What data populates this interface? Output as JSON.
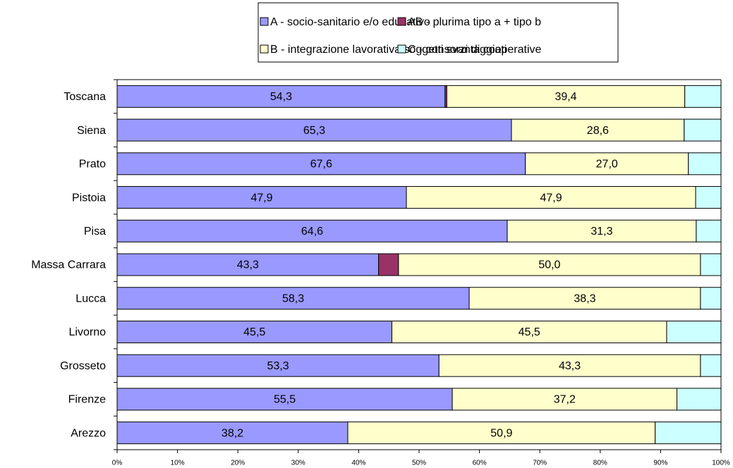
{
  "chart_data": {
    "type": "stacked_bar_horizontal",
    "categories": [
      "Toscana",
      "Siena",
      "Prato",
      "Pistoia",
      "Pisa",
      "Massa Carrara",
      "Lucca",
      "Livorno",
      "Grosseto",
      "Firenze",
      "Arezzo"
    ],
    "series": [
      {
        "name": "A - socio-sanitario e/o educativo",
        "color": "#9999ff",
        "values": [
          54.3,
          65.3,
          67.6,
          47.9,
          64.6,
          43.3,
          58.3,
          45.5,
          53.3,
          55.5,
          38.2
        ],
        "value_labels": [
          "54,3",
          "65,3",
          "67,6",
          "47,9",
          "64,6",
          "43,3",
          "58,3",
          "45,5",
          "53,3",
          "55,5",
          "38,2"
        ]
      },
      {
        "name": "AB - plurima tipo a + tipo b",
        "color": "#993366",
        "values": [
          0.3,
          0,
          0,
          0,
          0,
          3.3,
          0,
          0,
          0,
          0,
          0
        ]
      },
      {
        "name": "B - integrazione lavorativa soggetti svantaggiati",
        "color": "#ffffcc",
        "values": [
          39.4,
          28.6,
          27.0,
          47.9,
          31.3,
          50.0,
          38.3,
          45.5,
          43.3,
          37.2,
          50.9
        ],
        "value_labels": [
          "39,4",
          "28,6",
          "27,0",
          "47,9",
          "31,3",
          "50,0",
          "38,3",
          "45,5",
          "43,3",
          "37,2",
          "50,9"
        ]
      },
      {
        "name": "C - consorzi di cooperative",
        "color": "#ccffff",
        "values": [
          6.0,
          6.1,
          5.4,
          4.2,
          4.1,
          3.4,
          3.4,
          9.0,
          3.4,
          7.3,
          10.9
        ]
      }
    ],
    "xlim": [
      0,
      100
    ],
    "xticks": [
      {
        "value": 0,
        "label": "0%"
      },
      {
        "value": 10,
        "label": "10%"
      },
      {
        "value": 20,
        "label": "20%"
      },
      {
        "value": 30,
        "label": "30%"
      },
      {
        "value": 40,
        "label": "40%"
      },
      {
        "value": 50,
        "label": "50%"
      },
      {
        "value": 60,
        "label": "60%"
      },
      {
        "value": 70,
        "label": "70%"
      },
      {
        "value": 80,
        "label": "80%"
      },
      {
        "value": 90,
        "label": "90%"
      },
      {
        "value": 100,
        "label": "100%"
      }
    ]
  }
}
